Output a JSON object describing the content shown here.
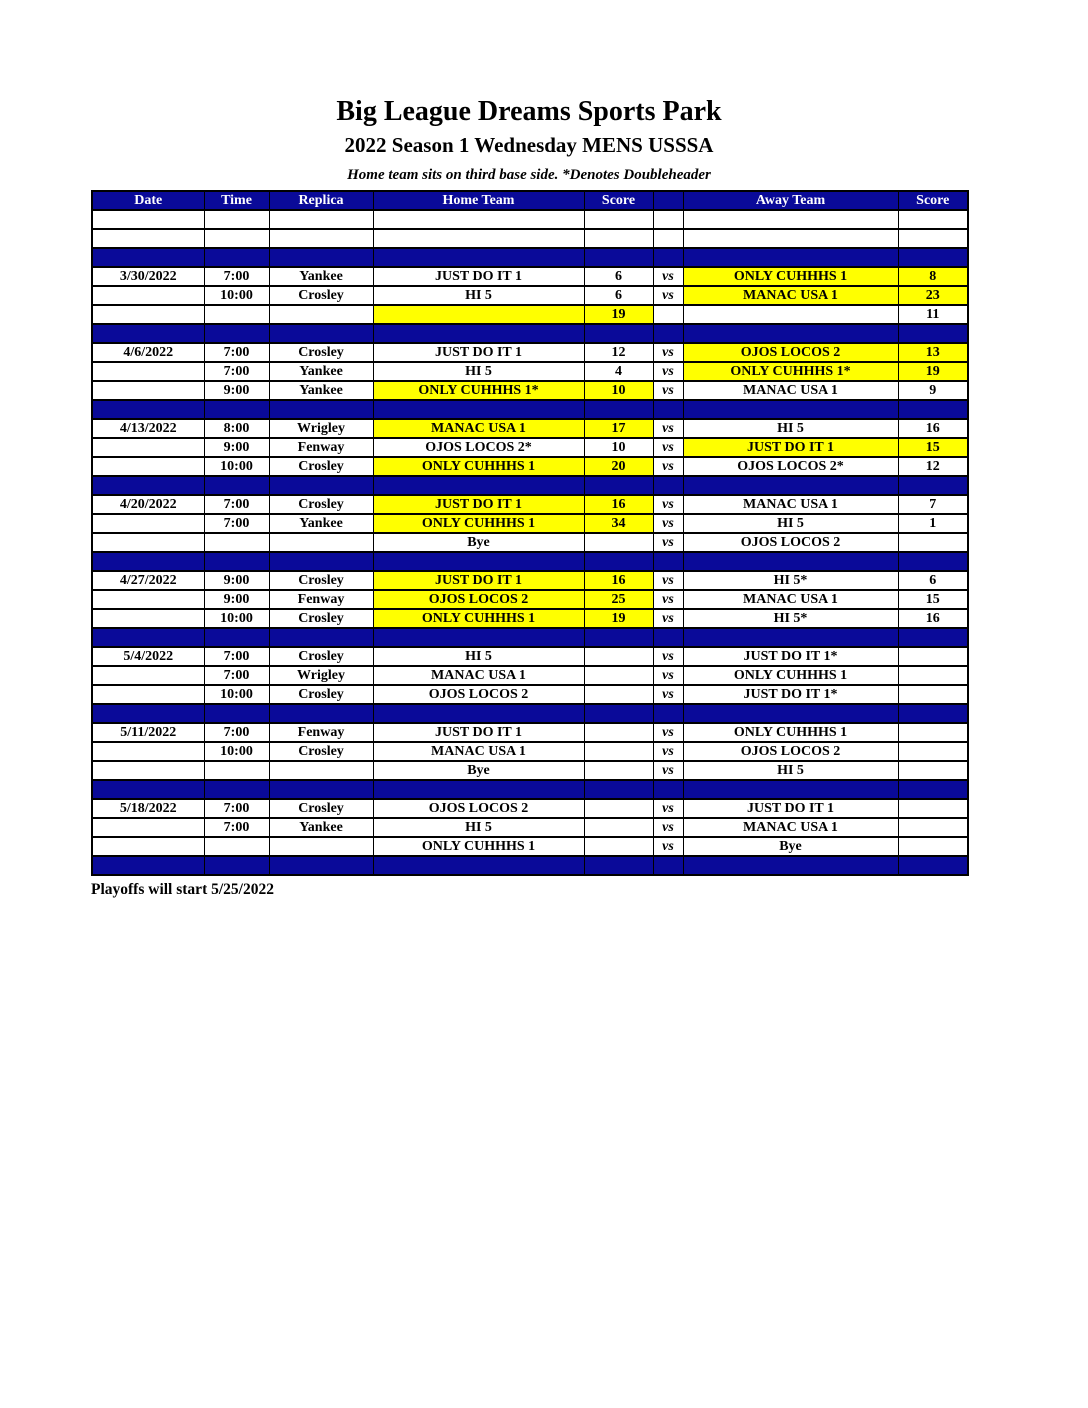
{
  "header": {
    "title": "Big League Dreams Sports Park",
    "subtitle": "2022 Season 1 Wednesday MENS USSSA",
    "note": "Home team sits on third base side.  *Denotes Doubleheader"
  },
  "footer": {
    "text": "Playoffs will start 5/25/2022"
  },
  "colors": {
    "navy": "#0a0a99",
    "highlight": "#ffff00",
    "header_text": "#ffffff",
    "body_text": "#000000",
    "grid": "#000000"
  },
  "table": {
    "column_headers": [
      "Date",
      "Time",
      "Replica",
      "Home Team",
      "Score",
      "",
      "Away Team",
      "Score"
    ],
    "rows": [
      {
        "type": "empty"
      },
      {
        "type": "empty"
      },
      {
        "type": "sep"
      },
      {
        "type": "game",
        "date": "3/30/2022",
        "time": "7:00",
        "replica": "Yankee",
        "home": "JUST DO IT 1",
        "home_score": "6",
        "vs": "vs",
        "away": "ONLY CUHHHS 1",
        "away_score": "8",
        "home_hl": false,
        "away_hl": true
      },
      {
        "type": "game",
        "date": "",
        "time": "10:00",
        "replica": "Crosley",
        "home": "HI 5",
        "home_score": "6",
        "vs": "vs",
        "away": "MANAC USA 1",
        "away_score": "23",
        "home_hl": false,
        "away_hl": true
      },
      {
        "type": "game",
        "date": "",
        "time": "",
        "replica": "",
        "home": "",
        "home_score": "19",
        "vs": "",
        "away": "",
        "away_score": "11",
        "home_hl": true,
        "away_hl": false
      },
      {
        "type": "sep"
      },
      {
        "type": "game",
        "date": "4/6/2022",
        "time": "7:00",
        "replica": "Crosley",
        "home": "JUST DO IT 1",
        "home_score": "12",
        "vs": "vs",
        "away": "OJOS LOCOS 2",
        "away_score": "13",
        "home_hl": false,
        "away_hl": true
      },
      {
        "type": "game",
        "date": "",
        "time": "7:00",
        "replica": "Yankee",
        "home": "HI 5",
        "home_score": "4",
        "vs": "vs",
        "away": "ONLY CUHHHS 1*",
        "away_score": "19",
        "home_hl": false,
        "away_hl": true
      },
      {
        "type": "game",
        "date": "",
        "time": "9:00",
        "replica": "Yankee",
        "home": "ONLY CUHHHS 1*",
        "home_score": "10",
        "vs": "vs",
        "away": "MANAC USA 1",
        "away_score": "9",
        "home_hl": true,
        "away_hl": false
      },
      {
        "type": "sep"
      },
      {
        "type": "game",
        "date": "4/13/2022",
        "time": "8:00",
        "replica": "Wrigley",
        "home": "MANAC USA 1",
        "home_score": "17",
        "vs": "vs",
        "away": "HI 5",
        "away_score": "16",
        "home_hl": true,
        "away_hl": false
      },
      {
        "type": "game",
        "date": "",
        "time": "9:00",
        "replica": "Fenway",
        "home": "OJOS LOCOS 2*",
        "home_score": "10",
        "vs": "vs",
        "away": "JUST DO IT 1",
        "away_score": "15",
        "home_hl": false,
        "away_hl": true
      },
      {
        "type": "game",
        "date": "",
        "time": "10:00",
        "replica": "Crosley",
        "home": "ONLY CUHHHS 1",
        "home_score": "20",
        "vs": "vs",
        "away": "OJOS LOCOS 2*",
        "away_score": "12",
        "home_hl": true,
        "away_hl": false
      },
      {
        "type": "sep"
      },
      {
        "type": "game",
        "date": "4/20/2022",
        "time": "7:00",
        "replica": "Crosley",
        "home": "JUST DO IT 1",
        "home_score": "16",
        "vs": "vs",
        "away": "MANAC USA 1",
        "away_score": "7",
        "home_hl": true,
        "away_hl": false
      },
      {
        "type": "game",
        "date": "",
        "time": "7:00",
        "replica": "Yankee",
        "home": "ONLY CUHHHS 1",
        "home_score": "34",
        "vs": "vs",
        "away": "HI 5",
        "away_score": "1",
        "home_hl": true,
        "away_hl": false
      },
      {
        "type": "game",
        "date": "",
        "time": "",
        "replica": "",
        "home": "Bye",
        "home_score": "",
        "vs": "vs",
        "away": "OJOS LOCOS 2",
        "away_score": "",
        "home_hl": false,
        "away_hl": false
      },
      {
        "type": "sep"
      },
      {
        "type": "game",
        "date": "4/27/2022",
        "time": "9:00",
        "replica": "Crosley",
        "home": "JUST DO IT 1",
        "home_score": "16",
        "vs": "vs",
        "away": "HI 5*",
        "away_score": "6",
        "home_hl": true,
        "away_hl": false
      },
      {
        "type": "game",
        "date": "",
        "time": "9:00",
        "replica": "Fenway",
        "home": "OJOS LOCOS 2",
        "home_score": "25",
        "vs": "vs",
        "away": "MANAC USA 1",
        "away_score": "15",
        "home_hl": true,
        "away_hl": false
      },
      {
        "type": "game",
        "date": "",
        "time": "10:00",
        "replica": "Crosley",
        "home": "ONLY CUHHHS 1",
        "home_score": "19",
        "vs": "vs",
        "away": "HI 5*",
        "away_score": "16",
        "home_hl": true,
        "away_hl": false
      },
      {
        "type": "sep"
      },
      {
        "type": "game",
        "date": "5/4/2022",
        "time": "7:00",
        "replica": "Crosley",
        "home": "HI 5",
        "home_score": "",
        "vs": "vs",
        "away": "JUST DO IT 1*",
        "away_score": "",
        "home_hl": false,
        "away_hl": false
      },
      {
        "type": "game",
        "date": "",
        "time": "7:00",
        "replica": "Wrigley",
        "home": "MANAC USA 1",
        "home_score": "",
        "vs": "vs",
        "away": "ONLY CUHHHS 1",
        "away_score": "",
        "home_hl": false,
        "away_hl": false
      },
      {
        "type": "game",
        "date": "",
        "time": "10:00",
        "replica": "Crosley",
        "home": "OJOS LOCOS 2",
        "home_score": "",
        "vs": "vs",
        "away": "JUST DO IT 1*",
        "away_score": "",
        "home_hl": false,
        "away_hl": false
      },
      {
        "type": "sep"
      },
      {
        "type": "game",
        "date": "5/11/2022",
        "time": "7:00",
        "replica": "Fenway",
        "home": "JUST DO IT 1",
        "home_score": "",
        "vs": "vs",
        "away": "ONLY CUHHHS 1",
        "away_score": "",
        "home_hl": false,
        "away_hl": false
      },
      {
        "type": "game",
        "date": "",
        "time": "10:00",
        "replica": "Crosley",
        "home": "MANAC USA 1",
        "home_score": "",
        "vs": "vs",
        "away": "OJOS LOCOS 2",
        "away_score": "",
        "home_hl": false,
        "away_hl": false
      },
      {
        "type": "game",
        "date": "",
        "time": "",
        "replica": "",
        "home": "Bye",
        "home_score": "",
        "vs": "vs",
        "away": "HI 5",
        "away_score": "",
        "home_hl": false,
        "away_hl": false
      },
      {
        "type": "sep"
      },
      {
        "type": "game",
        "date": "5/18/2022",
        "time": "7:00",
        "replica": "Crosley",
        "home": "OJOS LOCOS 2",
        "home_score": "",
        "vs": "vs",
        "away": "JUST DO IT 1",
        "away_score": "",
        "home_hl": false,
        "away_hl": false
      },
      {
        "type": "game",
        "date": "",
        "time": "7:00",
        "replica": "Yankee",
        "home": "HI 5",
        "home_score": "",
        "vs": "vs",
        "away": "MANAC USA 1",
        "away_score": "",
        "home_hl": false,
        "away_hl": false
      },
      {
        "type": "game",
        "date": "",
        "time": "",
        "replica": "",
        "home": "ONLY CUHHHS 1",
        "home_score": "",
        "vs": "vs",
        "away": "Bye",
        "away_score": "",
        "home_hl": false,
        "away_hl": false
      },
      {
        "type": "sep"
      }
    ]
  }
}
